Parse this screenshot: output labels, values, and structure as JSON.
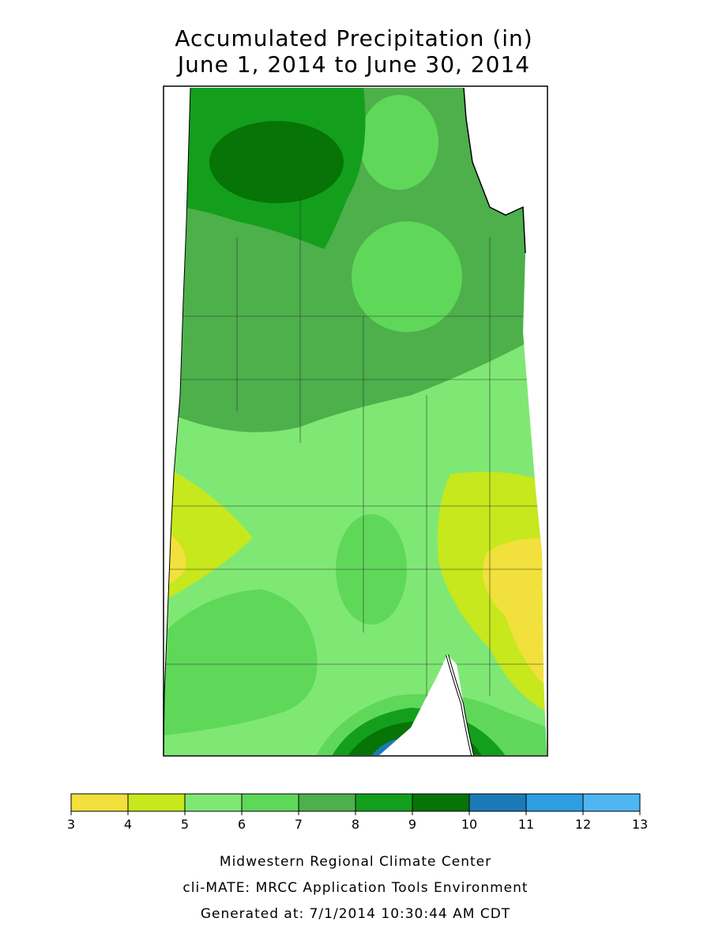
{
  "title": {
    "line1": "Accumulated Precipitation (in)",
    "line2": "June 1, 2014 to June 30, 2014"
  },
  "legend": {
    "bins": [
      3,
      4,
      5,
      6,
      7,
      8,
      9,
      10,
      11,
      12,
      13
    ],
    "colors": [
      "#f2e03c",
      "#c6e81c",
      "#7fe874",
      "#5fd85a",
      "#4db04b",
      "#139f1c",
      "#067406",
      "#1a7ab8",
      "#2e9ee0",
      "#4fb6f2"
    ]
  },
  "footer": {
    "line1": "Midwestern Regional Climate Center",
    "line2": "cli-MATE: MRCC Application Tools Environment",
    "line3": "Generated at: 7/1/2014 10:30:44 AM CDT"
  }
}
